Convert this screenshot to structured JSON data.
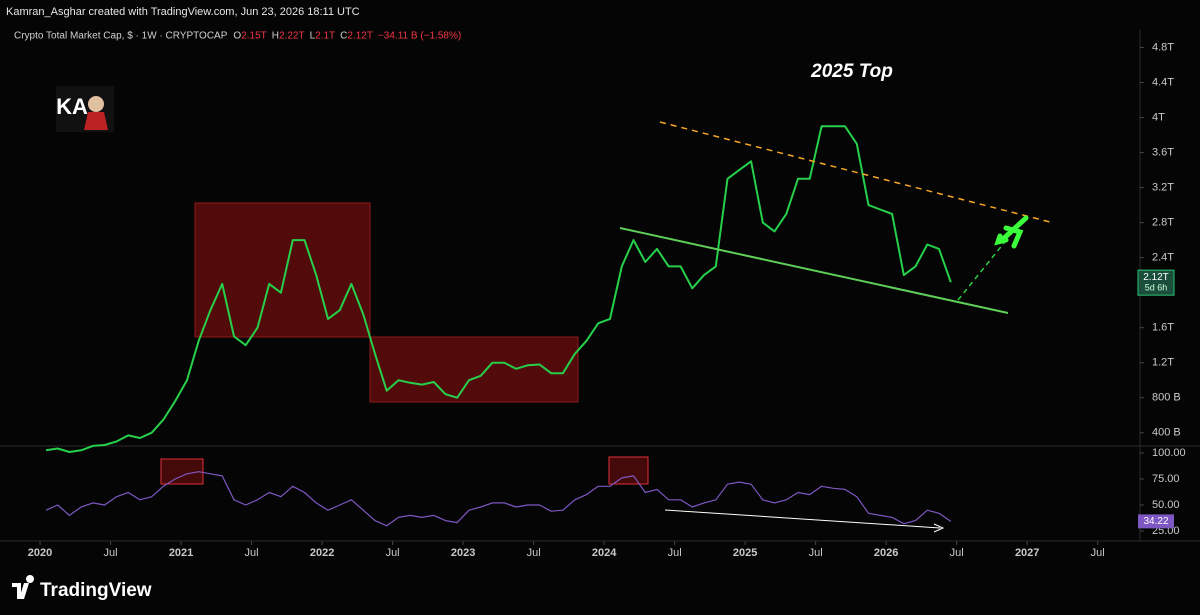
{
  "header": {
    "credit": "Kamran_Asghar created with TradingView.com, Jun 23, 2026 18:11 UTC",
    "symbol": "Crypto Total Market Cap, $ · 1W · CRYPTOCAP",
    "ohlc": [
      [
        "O",
        "2.15T"
      ],
      [
        "H",
        "2.22T"
      ],
      [
        "L",
        "2.1T"
      ],
      [
        "C",
        "2.12T"
      ]
    ],
    "change": "−34.11 B (−1.58%)",
    "avatar": "KA"
  },
  "footer": {
    "logo": "TradingView"
  },
  "chart_data": [
    {
      "type": "line",
      "annotation": "2025 Top",
      "color": "#26d04a",
      "price_label": "2.12T",
      "countdown": "5d 6h",
      "x": [
        2020.042,
        2020.125,
        2020.208,
        2020.292,
        2020.375,
        2020.458,
        2020.542,
        2020.625,
        2020.708,
        2020.792,
        2020.875,
        2020.958,
        2021.042,
        2021.125,
        2021.208,
        2021.292,
        2021.375,
        2021.458,
        2021.542,
        2021.625,
        2021.708,
        2021.792,
        2021.875,
        2021.958,
        2022.042,
        2022.125,
        2022.208,
        2022.292,
        2022.375,
        2022.458,
        2022.542,
        2022.625,
        2022.708,
        2022.792,
        2022.875,
        2022.958,
        2023.042,
        2023.125,
        2023.208,
        2023.292,
        2023.375,
        2023.458,
        2023.542,
        2023.625,
        2023.708,
        2023.792,
        2023.875,
        2023.958,
        2024.042,
        2024.125,
        2024.208,
        2024.292,
        2024.375,
        2024.458,
        2024.542,
        2024.625,
        2024.708,
        2024.792,
        2024.875,
        2024.958,
        2025.042,
        2025.125,
        2025.208,
        2025.292,
        2025.375,
        2025.458,
        2025.542,
        2025.625,
        2025.708,
        2025.792,
        2025.875,
        2025.958,
        2026.042,
        2026.125,
        2026.208,
        2026.292,
        2026.375,
        2026.458
      ],
      "values": [
        0.2,
        0.22,
        0.18,
        0.2,
        0.25,
        0.26,
        0.3,
        0.37,
        0.34,
        0.4,
        0.55,
        0.76,
        1.0,
        1.45,
        1.8,
        2.1,
        1.5,
        1.4,
        1.6,
        2.1,
        2.0,
        2.6,
        2.6,
        2.2,
        1.7,
        1.8,
        2.1,
        1.75,
        1.3,
        0.88,
        1.0,
        0.97,
        0.95,
        0.98,
        0.84,
        0.8,
        1.0,
        1.05,
        1.2,
        1.2,
        1.13,
        1.17,
        1.18,
        1.08,
        1.08,
        1.3,
        1.45,
        1.65,
        1.7,
        2.3,
        2.6,
        2.35,
        2.5,
        2.3,
        2.3,
        2.05,
        2.2,
        2.3,
        3.3,
        3.4,
        3.5,
        2.8,
        2.7,
        2.9,
        3.3,
        3.3,
        3.9,
        3.9,
        3.9,
        3.7,
        3.0,
        2.95,
        2.9,
        2.2,
        2.3,
        2.55,
        2.5,
        2.12
      ],
      "xlim": [
        2019.716,
        2027.8
      ],
      "xticks": [
        {
          "value": 2020,
          "label": "2020"
        },
        {
          "value": 2020.5,
          "label": "Jul"
        },
        {
          "value": 2021,
          "label": "2021"
        },
        {
          "value": 2021.5,
          "label": "Jul"
        },
        {
          "value": 2022,
          "label": "2022"
        },
        {
          "value": 2022.5,
          "label": "Jul"
        },
        {
          "value": 2023,
          "label": "2023"
        },
        {
          "value": 2023.5,
          "label": "Jul"
        },
        {
          "value": 2024,
          "label": "2024"
        },
        {
          "value": 2024.5,
          "label": "Jul"
        },
        {
          "value": 2025,
          "label": "2025"
        },
        {
          "value": 2025.5,
          "label": "Jul"
        },
        {
          "value": 2026,
          "label": "2026"
        },
        {
          "value": 2026.5,
          "label": "Jul"
        },
        {
          "value": 2027,
          "label": "2027"
        },
        {
          "value": 2027.5,
          "label": "Jul"
        }
      ],
      "ylim": [
        0.26,
        5.0
      ],
      "yticks": [
        {
          "value": 0.4,
          "label": "400 B"
        },
        {
          "value": 0.8,
          "label": "800 B"
        },
        {
          "value": 1.2,
          "label": "1.2T"
        },
        {
          "value": 1.6,
          "label": "1.6T"
        },
        {
          "value": 2.4,
          "label": "2.4T"
        },
        {
          "value": 2.8,
          "label": "2.8T"
        },
        {
          "value": 3.2,
          "label": "3.2T"
        },
        {
          "value": 3.6,
          "label": "3.6T"
        },
        {
          "value": 4,
          "label": "4T"
        },
        {
          "value": 4.4,
          "label": "4.4T"
        },
        {
          "value": 4.8,
          "label": "4.8T"
        }
      ]
    },
    {
      "type": "line",
      "color": "#7e57c2",
      "x": [
        2020.042,
        2020.125,
        2020.208,
        2020.292,
        2020.375,
        2020.458,
        2020.542,
        2020.625,
        2020.708,
        2020.792,
        2020.875,
        2020.958,
        2021.042,
        2021.125,
        2021.208,
        2021.292,
        2021.375,
        2021.458,
        2021.542,
        2021.625,
        2021.708,
        2021.792,
        2021.875,
        2021.958,
        2022.042,
        2022.125,
        2022.208,
        2022.292,
        2022.375,
        2022.458,
        2022.542,
        2022.625,
        2022.708,
        2022.792,
        2022.875,
        2022.958,
        2023.042,
        2023.125,
        2023.208,
        2023.292,
        2023.375,
        2023.458,
        2023.542,
        2023.625,
        2023.708,
        2023.792,
        2023.875,
        2023.958,
        2024.042,
        2024.125,
        2024.208,
        2024.292,
        2024.375,
        2024.458,
        2024.542,
        2024.625,
        2024.708,
        2024.792,
        2024.875,
        2024.958,
        2025.042,
        2025.125,
        2025.208,
        2025.292,
        2025.375,
        2025.458,
        2025.542,
        2025.625,
        2025.708,
        2025.792,
        2025.875,
        2025.958,
        2026.042,
        2026.125,
        2026.208,
        2026.292,
        2026.375,
        2026.458
      ],
      "values": [
        45,
        50,
        40,
        48,
        52,
        50,
        58,
        62,
        55,
        58,
        68,
        75,
        80,
        82,
        80,
        78,
        55,
        50,
        55,
        62,
        58,
        68,
        62,
        52,
        45,
        50,
        55,
        45,
        35,
        30,
        38,
        40,
        38,
        40,
        35,
        33,
        45,
        48,
        52,
        52,
        48,
        50,
        50,
        44,
        45,
        55,
        60,
        68,
        68,
        76,
        78,
        62,
        65,
        55,
        55,
        48,
        52,
        55,
        70,
        72,
        70,
        55,
        52,
        55,
        62,
        60,
        68,
        66,
        65,
        58,
        42,
        40,
        38,
        32,
        35,
        45,
        42,
        34.22
      ],
      "xlim": [
        2019.716,
        2027.8
      ],
      "ylim": [
        16.3,
        104.8
      ],
      "yticks": [
        {
          "value": 25,
          "label": "25.00"
        },
        {
          "value": 50,
          "label": "50.00"
        },
        {
          "value": 75,
          "label": "75.00"
        },
        {
          "value": 100,
          "label": "100.00"
        }
      ]
    }
  ]
}
